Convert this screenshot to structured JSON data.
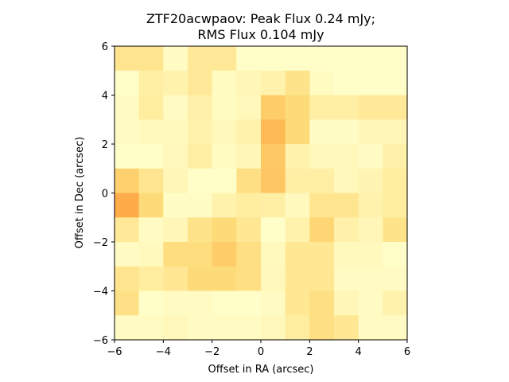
{
  "chart_data": {
    "type": "heatmap",
    "title_lines": [
      "ZTF20acwpaov: Peak Flux 0.24 mJy;",
      "RMS Flux 0.104 mJy"
    ],
    "xlabel": "Offset in RA (arcsec)",
    "ylabel": "Offset in Dec (arcsec)",
    "xlim": [
      -6,
      6
    ],
    "ylim": [
      -6,
      6
    ],
    "xticks": [
      -6,
      -4,
      -2,
      0,
      2,
      4,
      6
    ],
    "yticks": [
      -6,
      -4,
      -2,
      0,
      2,
      4,
      6
    ],
    "tick_labels_x": [
      "−6",
      "−4",
      "−2",
      "0",
      "2",
      "4",
      "6"
    ],
    "tick_labels_y": [
      "−6",
      "−4",
      "−2",
      "0",
      "2",
      "4",
      "6"
    ],
    "colormap": "YlOrRd",
    "color_stops": [
      "#ffffcc",
      "#ffeda0",
      "#fed976",
      "#feb24c",
      "#fd8d3c"
    ],
    "grid": false,
    "pixel_size_arcsec": 1,
    "rows_top_to_bottom": [
      [
        0.35,
        0.35,
        0.05,
        0.3,
        0.3,
        0.02,
        0.02,
        0.02,
        0.02,
        0.02,
        0.02,
        0.02
      ],
      [
        0.02,
        0.22,
        0.18,
        0.3,
        0.06,
        0.12,
        0.18,
        0.38,
        0.06,
        0.02,
        0.02,
        0.02
      ],
      [
        0.05,
        0.25,
        0.05,
        0.2,
        0.06,
        0.1,
        0.58,
        0.48,
        0.22,
        0.22,
        0.3,
        0.3
      ],
      [
        0.05,
        0.08,
        0.08,
        0.18,
        0.1,
        0.18,
        0.7,
        0.48,
        0.04,
        0.04,
        0.12,
        0.12
      ],
      [
        0.02,
        0.02,
        0.1,
        0.22,
        0.06,
        0.12,
        0.6,
        0.18,
        0.1,
        0.1,
        0.05,
        0.2
      ],
      [
        0.55,
        0.35,
        0.12,
        0.02,
        0.02,
        0.42,
        0.62,
        0.22,
        0.22,
        0.1,
        0.15,
        0.25
      ],
      [
        0.8,
        0.48,
        0.04,
        0.04,
        0.18,
        0.25,
        0.22,
        0.08,
        0.35,
        0.35,
        0.18,
        0.25
      ],
      [
        0.3,
        0.05,
        0.12,
        0.38,
        0.48,
        0.32,
        0.02,
        0.18,
        0.52,
        0.2,
        0.12,
        0.38
      ],
      [
        0.05,
        0.08,
        0.45,
        0.45,
        0.58,
        0.42,
        0.08,
        0.32,
        0.32,
        0.08,
        0.08,
        0.02
      ],
      [
        0.35,
        0.25,
        0.32,
        0.48,
        0.48,
        0.42,
        0.1,
        0.32,
        0.32,
        0.05,
        0.05,
        0.05
      ],
      [
        0.4,
        0.02,
        0.05,
        0.05,
        0.02,
        0.02,
        0.05,
        0.32,
        0.42,
        0.12,
        0.05,
        0.18
      ],
      [
        0.05,
        0.05,
        0.1,
        0.05,
        0.05,
        0.05,
        0.1,
        0.25,
        0.42,
        0.32,
        0.05,
        0.05
      ]
    ]
  }
}
